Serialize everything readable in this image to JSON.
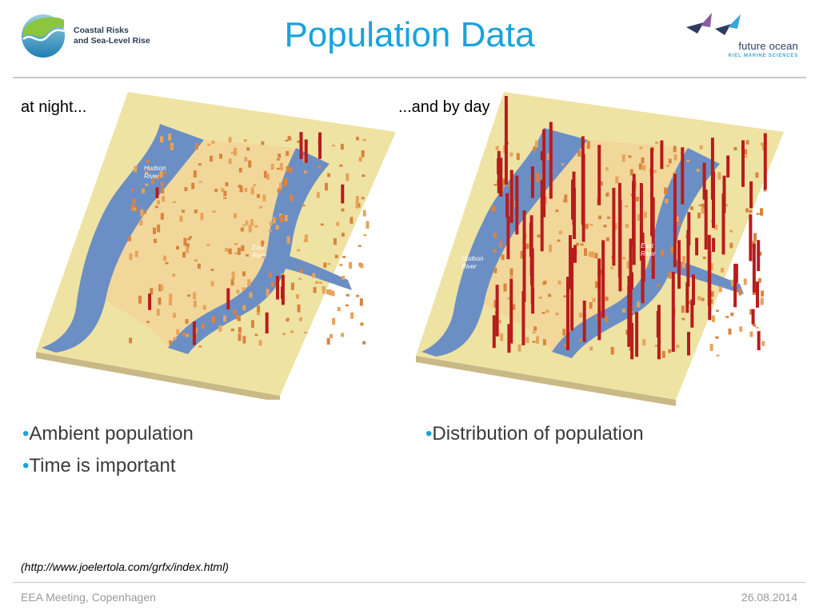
{
  "header": {
    "logo_left": {
      "line1": "Coastal Risks",
      "line2": "and Sea-Level Rise",
      "icon": "coastal-risks-logo-icon"
    },
    "title": "Population Data",
    "logo_right": {
      "name": "future ocean",
      "subtitle": "KIEL MARINE SCIENCES",
      "icon": "future-ocean-birds-icon"
    }
  },
  "panels": {
    "night": {
      "caption": "at night...",
      "labels": {
        "hudson": [
          "Hudson",
          "River"
        ],
        "east": [
          "East",
          "River"
        ]
      }
    },
    "day": {
      "caption": "...and by day",
      "labels": {
        "hudson": [
          "Hudson",
          "River"
        ],
        "east": [
          "East",
          "River"
        ]
      }
    }
  },
  "bullets": {
    "bullet_glyph": "•",
    "left": [
      "Ambient population",
      "Time is important"
    ],
    "right": [
      "Distribution of population"
    ]
  },
  "source": "(http://www.joelertola.com/grfx/index.html)",
  "footer": {
    "left": "EEA Meeting, Copenhagen",
    "right": "26.08.2014"
  },
  "colors": {
    "accent": "#1aa3dc",
    "water": "#6b8fc4",
    "land": "#efe3a3",
    "low_density": "#e8a35a",
    "high_density": "#b71c1c"
  }
}
